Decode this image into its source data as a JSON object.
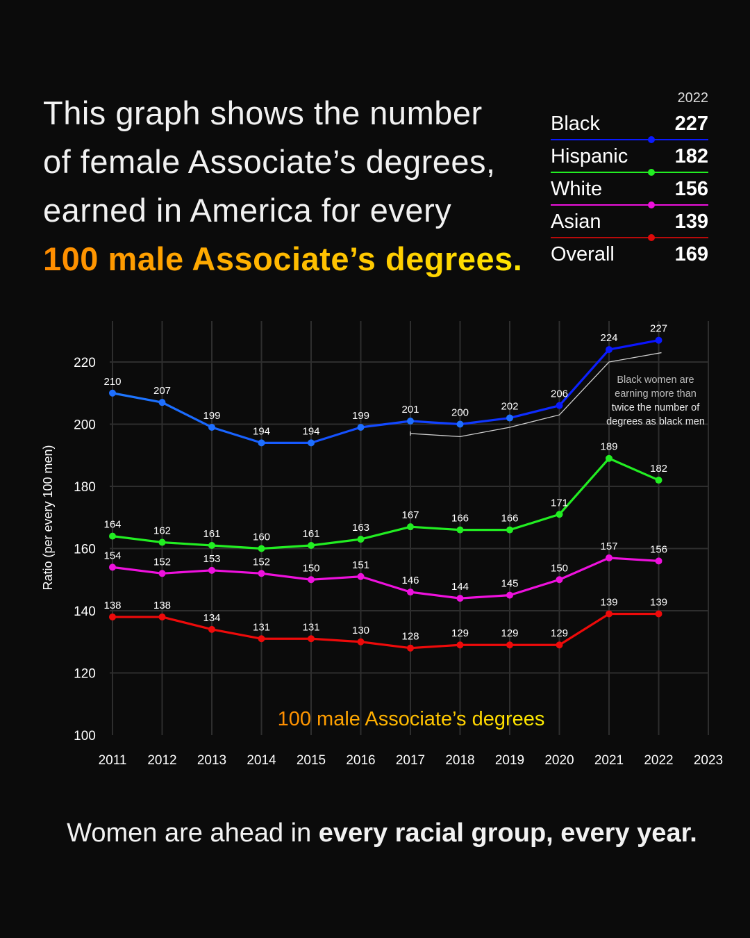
{
  "headline": {
    "line1": "This graph shows the number",
    "line2": "of female Associate’s degrees,",
    "line3": "earned in America for every",
    "line4": "100 male Associate’s degrees."
  },
  "legend": {
    "year": "2022",
    "rows": [
      {
        "name": "Black",
        "value": "227",
        "color": "#0a1aff"
      },
      {
        "name": "Hispanic",
        "value": "182",
        "color": "#22ee22"
      },
      {
        "name": "White",
        "value": "156",
        "color": "#ee11dd"
      },
      {
        "name": "Asian",
        "value": "139",
        "color": "#dd0a0a"
      },
      {
        "name": "Overall",
        "value": "169",
        "color": ""
      }
    ]
  },
  "chart_data": {
    "type": "line",
    "ylabel": "Ratio (per every 100 men)",
    "xlabel": "",
    "x": [
      2011,
      2012,
      2013,
      2014,
      2015,
      2016,
      2017,
      2018,
      2019,
      2020,
      2021,
      2022
    ],
    "xticks": [
      "2011",
      "2012",
      "2013",
      "2014",
      "2015",
      "2016",
      "2017",
      "2018",
      "2019",
      "2020",
      "2021",
      "2022",
      "2023"
    ],
    "yticks": [
      "100",
      "120",
      "140",
      "160",
      "180",
      "200",
      "220"
    ],
    "xlim": [
      2011,
      2023
    ],
    "ylim": [
      100,
      220
    ],
    "grid": true,
    "series": [
      {
        "name": "Black",
        "color": "#1a4dff",
        "values": [
          210,
          207,
          199,
          194,
          194,
          199,
          201,
          200,
          202,
          206,
          224,
          227
        ]
      },
      {
        "name": "Hispanic",
        "color": "#22ee22",
        "values": [
          164,
          162,
          161,
          160,
          161,
          163,
          167,
          166,
          166,
          171,
          189,
          182
        ]
      },
      {
        "name": "White",
        "color": "#ee11dd",
        "values": [
          154,
          152,
          153,
          152,
          150,
          151,
          146,
          144,
          145,
          150,
          157,
          156
        ]
      },
      {
        "name": "Asian",
        "color": "#ee0a0a",
        "values": [
          138,
          138,
          134,
          131,
          131,
          130,
          128,
          129,
          129,
          129,
          139,
          139
        ]
      }
    ],
    "reference_line": {
      "value": 100,
      "label": "100 male Associate’s degrees"
    },
    "annotation": {
      "lines": [
        "Black women are",
        "earning more than",
        "twice the number of",
        "degrees as black men"
      ],
      "bracket_x": [
        2017,
        2018,
        2019,
        2020,
        2021,
        2022
      ],
      "bracket_values": [
        197,
        196,
        199,
        203,
        220,
        223
      ]
    }
  },
  "footer": {
    "normal": "Women are ahead in ",
    "bold": "every racial group, every year."
  }
}
